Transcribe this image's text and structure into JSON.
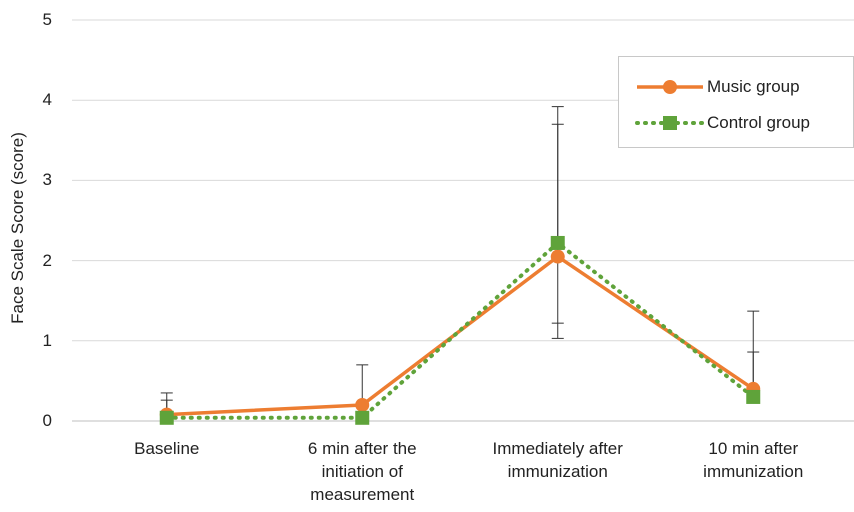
{
  "chart_data": {
    "type": "line",
    "title": "",
    "ylabel": "Face Scale Score (score)",
    "xlabel": "",
    "ylim": [
      0,
      5
    ],
    "yticks": [
      "0",
      "1",
      "2",
      "3",
      "4",
      "5"
    ],
    "categories": [
      [
        "Baseline"
      ],
      [
        "6 min after the",
        "initiation of",
        "measurement"
      ],
      [
        "Immediately after",
        "immunization"
      ],
      [
        "10 min after",
        "immunization"
      ]
    ],
    "series": [
      {
        "name": "Music group",
        "color": "#ED7D31",
        "line_style": "solid",
        "marker": "circle",
        "values": [
          0.08,
          0.2,
          2.05,
          0.4
        ],
        "error_upper": [
          0.35,
          0.7,
          3.7,
          1.37
        ],
        "error_lower": [
          0.0,
          0.0,
          0.0,
          0.0
        ]
      },
      {
        "name": "Control group",
        "color": "#5FA33A",
        "line_style": "dotted",
        "marker": "square",
        "values": [
          0.04,
          0.04,
          2.22,
          0.3
        ],
        "error_upper": [
          0.26,
          0.0,
          3.92,
          0.86
        ],
        "error_lower": [
          0.0,
          0.0,
          1.22,
          0.0
        ]
      }
    ],
    "error_lower_extra": {
      "index": 2,
      "value": 1.03
    },
    "grid": "horizontal",
    "legend_position": "top-right"
  }
}
